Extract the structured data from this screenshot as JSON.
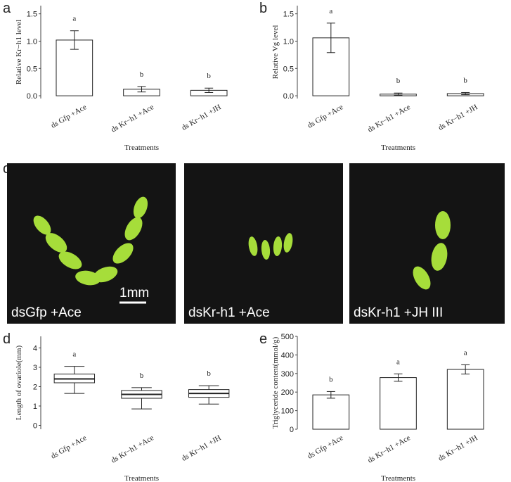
{
  "chart_data": [
    {
      "panel": "a",
      "type": "bar",
      "ylabel": "Relative Kr−h1 level",
      "xlabel": "Treatments",
      "categories": [
        "ds Gfp +Ace",
        "ds Kr−h1 +Ace",
        "ds Kr−h1 +JH"
      ],
      "values": [
        1.02,
        0.12,
        0.1
      ],
      "errors": [
        0.17,
        0.05,
        0.04
      ],
      "letters": [
        "a",
        "b",
        "b"
      ],
      "ylim": [
        -0.05,
        1.65
      ],
      "yticks": [
        {
          "value": 0,
          "label": "0.0"
        },
        {
          "value": 0.5,
          "label": "0.5"
        },
        {
          "value": 1,
          "label": "1.0"
        },
        {
          "value": 1.5,
          "label": "1.5"
        }
      ]
    },
    {
      "panel": "b",
      "type": "bar",
      "ylabel": "Relative Vg level",
      "xlabel": "Treatments",
      "categories": [
        "ds Gfp +Ace",
        "ds Kr−h1 +Ace",
        "ds Kr−h1 +JH"
      ],
      "values": [
        1.06,
        0.03,
        0.04
      ],
      "errors": [
        0.27,
        0.02,
        0.02
      ],
      "letters": [
        "a",
        "b",
        "b"
      ],
      "ylim": [
        -0.05,
        1.65
      ],
      "yticks": [
        {
          "value": 0,
          "label": "0.0"
        },
        {
          "value": 0.5,
          "label": "0.5"
        },
        {
          "value": 1,
          "label": "1.0"
        },
        {
          "value": 1.5,
          "label": "1.5"
        }
      ]
    },
    {
      "panel": "d",
      "type": "box",
      "ylabel": "Length of ovariole(mm)",
      "xlabel": "Treatments",
      "categories": [
        "ds Gfp +Ace",
        "ds Kr−h1 +Ace",
        "ds Kr−h1 +JH"
      ],
      "whisker_low": [
        1.65,
        0.85,
        1.1
      ],
      "q1": [
        2.2,
        1.4,
        1.45
      ],
      "median": [
        2.4,
        1.6,
        1.65
      ],
      "q3": [
        2.65,
        1.8,
        1.85
      ],
      "whisker_high": [
        3.05,
        1.95,
        2.05
      ],
      "letters": [
        "a",
        "b",
        "b"
      ],
      "ylim": [
        -0.2,
        4.6
      ],
      "yticks": [
        0,
        1,
        2,
        3,
        4
      ]
    },
    {
      "panel": "e",
      "type": "bar",
      "ylabel": "Triglyceride content(mmol/g)",
      "xlabel": "Treatments",
      "categories": [
        "ds Gfp +Ace",
        "ds Kr−h1 +Ace",
        "ds Kr−h1 +JH"
      ],
      "values": [
        185,
        278,
        322
      ],
      "errors": [
        18,
        20,
        25
      ],
      "letters": [
        "b",
        "a",
        "a"
      ],
      "ylim": [
        0,
        500
      ],
      "yticks": [
        0,
        100,
        200,
        300,
        400,
        500
      ]
    }
  ],
  "image_panel": {
    "panel": "c",
    "captions": [
      "dsGfp +Ace",
      "dsKr-h1 +Ace",
      "dsKr-h1 +JH III"
    ],
    "scale_bar": "1mm"
  }
}
